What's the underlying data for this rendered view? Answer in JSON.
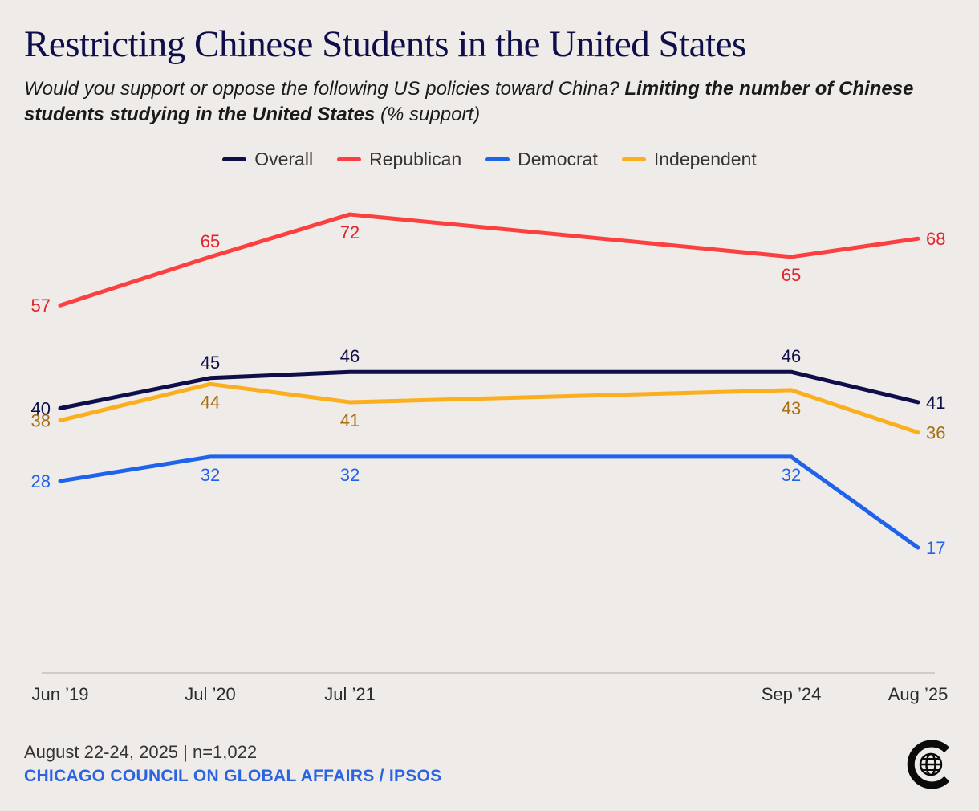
{
  "title": "Restricting Chinese Students in the United States",
  "subtitle": {
    "lead": "Would you support or oppose the following US policies toward China? ",
    "emphasis": "Limiting the number of Chinese students studying in the United States",
    "tail": " (% support)"
  },
  "footer": {
    "date_sample": "August 22-24, 2025 | n=1,022",
    "source": "CHICAGO COUNCIL ON GLOBAL AFFAIRS / IPSOS"
  },
  "colors": {
    "Overall": "#0e0e4a",
    "Republican": "#fc4040",
    "Democrat": "#1f63eb",
    "Independent": "#fbae1e",
    "Independent_label": "#a86e12",
    "Republican_label": "#e0252d",
    "axis": "#cfcbc8"
  },
  "chart_data": {
    "type": "line",
    "title": "Restricting Chinese Students in the United States",
    "ylabel": "% support",
    "categories": [
      "Jun ’19",
      "Jul ’20",
      "Jul ’21",
      "Sep ’24",
      "Aug ’25"
    ],
    "ylim": [
      0,
      80
    ],
    "grid": false,
    "legend_position": "top-center",
    "series": [
      {
        "name": "Overall",
        "values": [
          40,
          45,
          46,
          46,
          41
        ]
      },
      {
        "name": "Republican",
        "values": [
          57,
          65,
          72,
          65,
          68
        ]
      },
      {
        "name": "Democrat",
        "values": [
          28,
          32,
          32,
          32,
          17
        ]
      },
      {
        "name": "Independent",
        "values": [
          38,
          44,
          41,
          43,
          36
        ]
      }
    ]
  }
}
